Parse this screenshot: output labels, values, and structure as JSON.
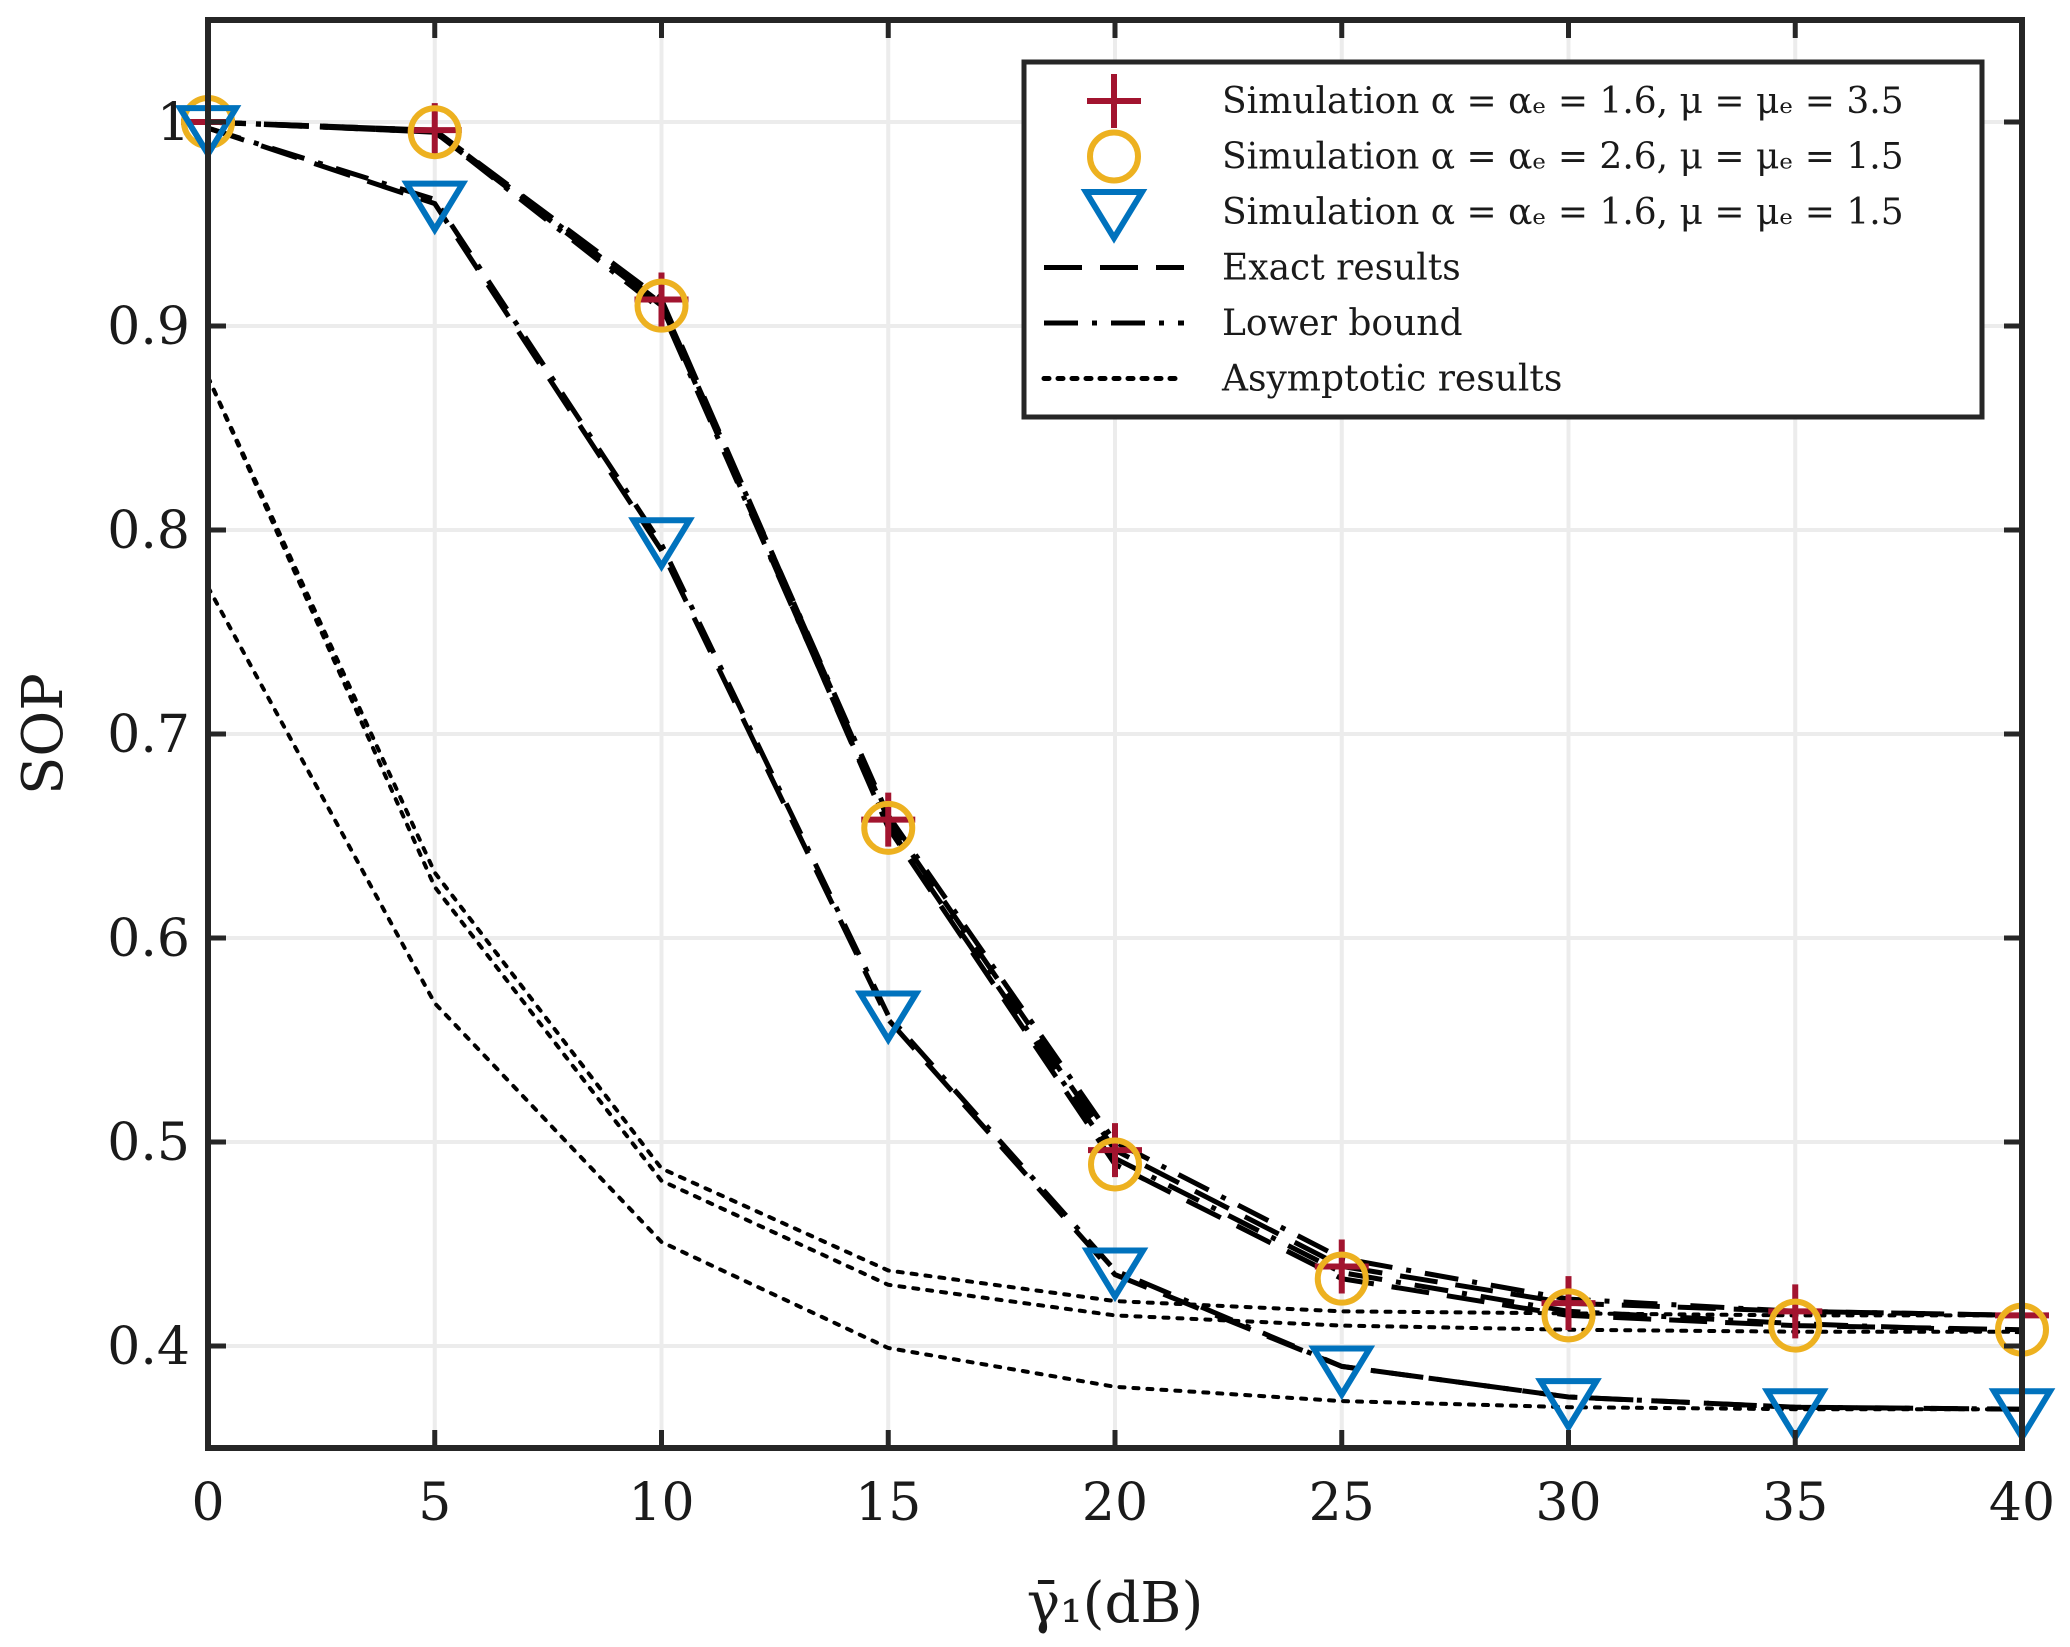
{
  "chart_data": {
    "type": "line",
    "xlabel": "γ̄₁(dB)",
    "ylabel": "SOP",
    "xlim": [
      0,
      40
    ],
    "ylim": [
      0.35,
      1.05
    ],
    "xticks": [
      0,
      5,
      10,
      15,
      20,
      25,
      30,
      35,
      40
    ],
    "yticks": [
      0.4,
      0.5,
      0.6,
      0.7,
      0.8,
      0.9,
      1
    ],
    "xtick_labels": [
      "0",
      "5",
      "10",
      "15",
      "20",
      "25",
      "30",
      "35",
      "40"
    ],
    "ytick_labels": [
      "0.4",
      "0.5",
      "0.6",
      "0.7",
      "0.8",
      "0.9",
      "1"
    ],
    "grid": true,
    "legend_position": "top-right",
    "legend": [
      {
        "label": "Simulation α = αₑ = 1.6, μ = μₑ = 3.5",
        "marker": "plus",
        "color": "#a2142f"
      },
      {
        "label": "Simulation α = αₑ = 2.6, μ = μₑ = 1.5",
        "marker": "circle",
        "color": "#edb120"
      },
      {
        "label": "Simulation α = αₑ = 1.6, μ = μₑ = 1.5",
        "marker": "triangle-down",
        "color": "#0072bd"
      },
      {
        "label": "Exact results",
        "line": "dashed",
        "color": "#000000"
      },
      {
        "label": "Lower bound",
        "line": "dashdot",
        "color": "#000000"
      },
      {
        "label": "Asymptotic results",
        "line": "dotted",
        "color": "#000000"
      }
    ],
    "x": [
      0,
      5,
      10,
      15,
      20,
      25,
      30,
      35,
      40
    ],
    "markers": [
      {
        "name": "Simulation α = αₑ = 1.6, μ = μₑ = 3.5",
        "marker": "plus",
        "color": "#a2142f",
        "values": [
          1.0,
          0.996,
          0.913,
          0.658,
          0.496,
          0.439,
          0.421,
          0.417,
          0.415
        ]
      },
      {
        "name": "Simulation α = αₑ = 2.6, μ = μₑ = 1.5",
        "marker": "circle",
        "color": "#edb120",
        "values": [
          1.0,
          0.995,
          0.91,
          0.654,
          0.489,
          0.433,
          0.415,
          0.41,
          0.408
        ]
      },
      {
        "name": "Simulation α = αₑ = 1.6, μ = μₑ = 1.5",
        "marker": "triangle-down",
        "color": "#0072bd",
        "values": [
          0.997,
          0.96,
          0.795,
          0.563,
          0.437,
          0.389,
          0.373,
          0.368,
          0.368
        ]
      }
    ],
    "lines": [
      {
        "style": "dashed",
        "values": [
          1.0,
          0.996,
          0.913,
          0.658,
          0.496,
          0.439,
          0.421,
          0.417,
          0.415
        ]
      },
      {
        "style": "dashdot",
        "values": [
          1.0,
          0.996,
          0.911,
          0.66,
          0.5,
          0.443,
          0.423,
          0.417,
          0.415
        ]
      },
      {
        "style": "dashed",
        "values": [
          1.0,
          0.995,
          0.91,
          0.654,
          0.489,
          0.433,
          0.415,
          0.41,
          0.408
        ]
      },
      {
        "style": "dashdot",
        "values": [
          1.0,
          0.995,
          0.908,
          0.655,
          0.492,
          0.436,
          0.417,
          0.411,
          0.407
        ]
      },
      {
        "style": "dashed",
        "values": [
          0.997,
          0.96,
          0.79,
          0.56,
          0.435,
          0.39,
          0.375,
          0.37,
          0.369
        ]
      },
      {
        "style": "dashdot",
        "values": [
          0.997,
          0.962,
          0.793,
          0.562,
          0.437,
          0.39,
          0.375,
          0.37,
          0.369
        ]
      },
      {
        "style": "dotted",
        "values": [
          0.875,
          0.632,
          0.487,
          0.437,
          0.422,
          0.417,
          0.416,
          0.415,
          0.415
        ]
      },
      {
        "style": "dotted",
        "values": [
          0.875,
          0.625,
          0.481,
          0.43,
          0.415,
          0.41,
          0.408,
          0.407,
          0.407
        ]
      },
      {
        "style": "dotted",
        "values": [
          0.772,
          0.568,
          0.451,
          0.399,
          0.38,
          0.373,
          0.37,
          0.369,
          0.369
        ]
      }
    ]
  }
}
